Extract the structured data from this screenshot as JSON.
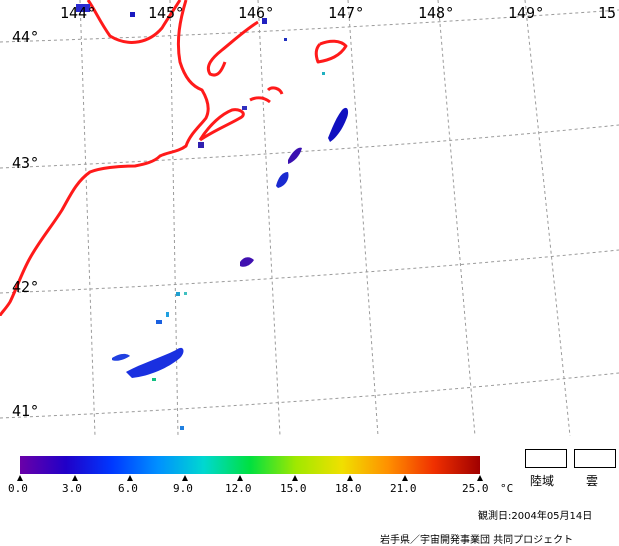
{
  "map": {
    "lon_labels": [
      "144°",
      "145°",
      "146°",
      "147°",
      "148°",
      "149°",
      "15"
    ],
    "lat_labels": [
      "44°",
      "43°",
      "42°",
      "41°"
    ]
  },
  "legend": {
    "ticks": [
      "0.0",
      "3.0",
      "6.0",
      "9.0",
      "12.0",
      "15.0",
      "18.0",
      "21.0",
      "25.0"
    ],
    "unit": "°C",
    "colors": [
      "#6a00a8",
      "#2000c8",
      "#0038ff",
      "#0090ff",
      "#00d8d0",
      "#00e040",
      "#a0e800",
      "#f0e000",
      "#ff9000",
      "#f03000",
      "#a00000"
    ],
    "land_label": "陸域",
    "cloud_label": "雲"
  },
  "footer": {
    "date": "観測日:2004年05月14日",
    "credit": "岩手県／宇宙開発事業団 共同プロジェクト"
  }
}
